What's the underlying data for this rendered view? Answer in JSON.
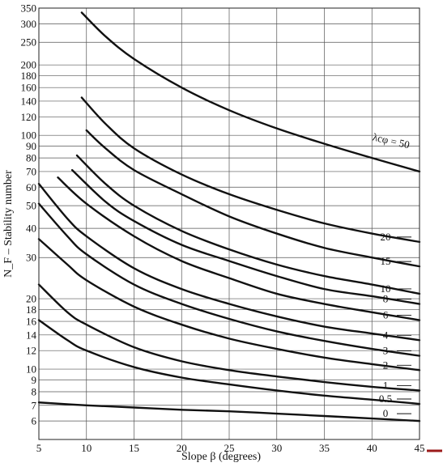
{
  "chart_data": {
    "type": "line",
    "title": "",
    "xlabel": "Slope β (degrees)",
    "ylabel": "N_F – Stability number",
    "xlim": [
      5,
      45
    ],
    "ylim": [
      5,
      350
    ],
    "yscale": "log",
    "grid": true,
    "legend": "none",
    "x_ticks": [
      5,
      10,
      15,
      20,
      25,
      30,
      35,
      40,
      45
    ],
    "x_tick_labels": [
      "5",
      "10",
      "15",
      "20",
      "25",
      "30",
      "35",
      "40",
      "45"
    ],
    "y_ticks": [
      6,
      7,
      8,
      9,
      10,
      12,
      14,
      16,
      18,
      20,
      30,
      40,
      50,
      60,
      70,
      80,
      90,
      100,
      120,
      140,
      160,
      180,
      200,
      250,
      300,
      350
    ],
    "y_tick_labels": [
      "6",
      "7",
      "8",
      "9",
      "10",
      "12",
      "14",
      "16",
      "18",
      "20",
      "30",
      "40",
      "50",
      "60",
      "70",
      "80",
      "90",
      "100",
      "120",
      "140",
      "160",
      "180",
      "200",
      "250",
      "300",
      "350"
    ],
    "series": [
      {
        "label": "λcφ = 50",
        "x": [
          9.5,
          12,
          15,
          20,
          25,
          30,
          35,
          40,
          45
        ],
        "y": [
          335,
          265,
          212,
          160,
          128,
          107,
          92,
          80,
          70
        ]
      },
      {
        "label": "20",
        "x": [
          9.5,
          12,
          15,
          20,
          25,
          30,
          35,
          40,
          45
        ],
        "y": [
          145,
          112,
          88,
          68,
          56,
          48,
          42,
          38,
          35
        ]
      },
      {
        "label": "15",
        "x": [
          10,
          12,
          15,
          20,
          25,
          30,
          35,
          40,
          45
        ],
        "y": [
          105,
          88,
          71,
          56,
          45,
          38,
          33,
          30,
          27.5
        ]
      },
      {
        "label": "10",
        "x": [
          9,
          12,
          15,
          20,
          25,
          30,
          35,
          40,
          45
        ],
        "y": [
          82,
          62,
          50,
          39,
          32.5,
          28,
          25,
          23,
          21
        ]
      },
      {
        "label": "8",
        "x": [
          8.5,
          12,
          15,
          20,
          25,
          30,
          35,
          40,
          45
        ],
        "y": [
          71,
          52,
          43,
          34,
          29,
          25,
          22,
          20.5,
          19
        ]
      },
      {
        "label": "6",
        "x": [
          7,
          10,
          15,
          20,
          25,
          30,
          35,
          40,
          45
        ],
        "y": [
          66,
          51,
          37,
          29,
          24.5,
          21,
          19,
          17.5,
          16.2
        ]
      },
      {
        "label": "4",
        "x": [
          5,
          8,
          10,
          15,
          20,
          25,
          30,
          35,
          40,
          45
        ],
        "y": [
          62,
          44,
          37,
          27,
          22,
          19,
          16.8,
          15.2,
          14.2,
          13.3
        ]
      },
      {
        "label": "3",
        "x": [
          5,
          8,
          10,
          15,
          20,
          25,
          30,
          35,
          40,
          45
        ],
        "y": [
          51,
          37,
          31,
          23,
          19,
          16.4,
          14.5,
          13.2,
          12.2,
          11.4
        ]
      },
      {
        "label": "2",
        "x": [
          5,
          8,
          10,
          15,
          20,
          25,
          30,
          35,
          40,
          45
        ],
        "y": [
          36,
          28,
          24,
          18.5,
          15.5,
          13.5,
          12.2,
          11.2,
          10.5,
          9.9
        ]
      },
      {
        "label": "1",
        "x": [
          5,
          8,
          10,
          15,
          20,
          25,
          30,
          35,
          40,
          45
        ],
        "y": [
          23,
          17.5,
          15.5,
          12.4,
          10.8,
          9.9,
          9.3,
          8.8,
          8.4,
          8.1
        ]
      },
      {
        "label": "0.5",
        "x": [
          5,
          8,
          10,
          15,
          20,
          25,
          30,
          35,
          40,
          45
        ],
        "y": [
          16.2,
          13.3,
          12,
          10.2,
          9.2,
          8.6,
          8.1,
          7.7,
          7.4,
          7.1
        ]
      },
      {
        "label": "0",
        "x": [
          5,
          10,
          15,
          20,
          25,
          30,
          35,
          40,
          45
        ],
        "y": [
          7.2,
          7,
          6.85,
          6.7,
          6.6,
          6.45,
          6.3,
          6.15,
          6
        ]
      }
    ]
  },
  "colors": {
    "curve": "#111111",
    "grid": "#555555",
    "marker": "#9b1b1b"
  }
}
